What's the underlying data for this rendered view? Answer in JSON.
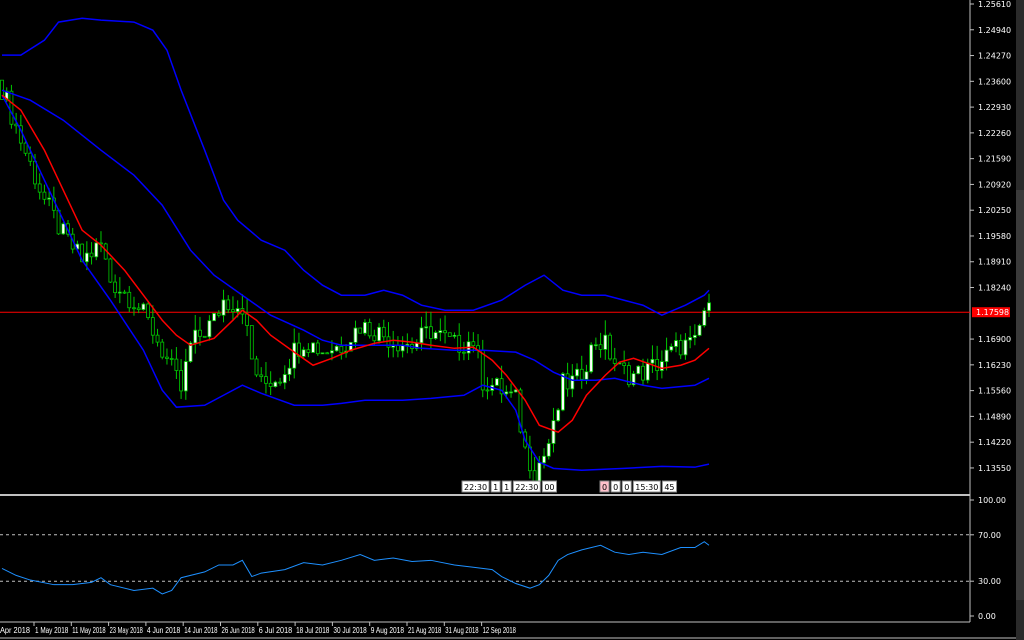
{
  "chart_data": {
    "type": "candlestick",
    "price_axis": {
      "ticks": [
        "1.25610",
        "1.24940",
        "1.24270",
        "1.23600",
        "1.22930",
        "1.22260",
        "1.21590",
        "1.20920",
        "1.20250",
        "1.19580",
        "1.18910",
        "1.18240",
        "1.16900",
        "1.16230",
        "1.15560",
        "1.14890",
        "1.14220",
        "1.13550"
      ],
      "ylim": [
        1.1302,
        1.2571
      ]
    },
    "current_price": "1.17598",
    "current_price_color": "#ff0000",
    "date_axis": {
      "bars": 150,
      "labels": [
        "Apr 2018",
        "1 May 2018",
        "11 May 2018",
        "23 May 2018",
        "4 Jun 2018",
        "14 Jun 2018",
        "26 Jun 2018",
        "6 Jul 2018",
        "18 Jul 2018",
        "30 Jul 2018",
        "9 Aug 2018",
        "21 Aug 2018",
        "31 Aug 2018",
        "12 Sep 2018"
      ]
    },
    "close_path": [
      [
        0,
        1.2343
      ],
      [
        4,
        1.2207
      ],
      [
        9,
        1.2051
      ],
      [
        13,
        1.196
      ],
      [
        17,
        1.1895
      ],
      [
        21,
        1.1934
      ],
      [
        23,
        1.1843
      ],
      [
        28,
        1.1791
      ],
      [
        32,
        1.1713
      ],
      [
        36,
        1.1609
      ],
      [
        38,
        1.1557
      ],
      [
        40,
        1.1674
      ],
      [
        45,
        1.1739
      ],
      [
        47,
        1.1791
      ],
      [
        51,
        1.1778
      ],
      [
        53,
        1.1635
      ],
      [
        55,
        1.157
      ],
      [
        59,
        1.1596
      ],
      [
        62,
        1.1661
      ],
      [
        64,
        1.1687
      ],
      [
        68,
        1.1661
      ],
      [
        72,
        1.1674
      ],
      [
        76,
        1.1726
      ],
      [
        79,
        1.1713
      ],
      [
        83,
        1.1687
      ],
      [
        87,
        1.1674
      ],
      [
        91,
        1.1713
      ],
      [
        96,
        1.1674
      ],
      [
        100,
        1.1687
      ],
      [
        102,
        1.1583
      ],
      [
        106,
        1.1557
      ],
      [
        109,
        1.1531
      ],
      [
        111,
        1.1401
      ],
      [
        113,
        1.1349
      ],
      [
        115,
        1.1388
      ],
      [
        117,
        1.1453
      ],
      [
        119,
        1.157
      ],
      [
        122,
        1.1583
      ],
      [
        126,
        1.1687
      ],
      [
        128,
        1.1674
      ],
      [
        131,
        1.1609
      ],
      [
        134,
        1.1596
      ],
      [
        137,
        1.1609
      ],
      [
        140,
        1.1635
      ],
      [
        144,
        1.1674
      ],
      [
        147,
        1.1674
      ],
      [
        149,
        1.1765
      ],
      [
        150,
        1.176
      ]
    ],
    "series": [
      {
        "color": "#0000ff",
        "points": [
          [
            0,
            1.2428
          ],
          [
            4,
            1.2428
          ],
          [
            9,
            1.2467
          ],
          [
            12,
            1.2514
          ],
          [
            17,
            1.2524
          ],
          [
            21,
            1.2519
          ],
          [
            28,
            1.2514
          ],
          [
            32,
            1.2493
          ],
          [
            35,
            1.2441
          ],
          [
            38,
            1.2337
          ],
          [
            43,
            1.2181
          ],
          [
            47,
            1.2051
          ],
          [
            50,
            1.1999
          ],
          [
            55,
            1.1947
          ],
          [
            60,
            1.1921
          ],
          [
            64,
            1.1869
          ],
          [
            68,
            1.183
          ],
          [
            72,
            1.1804
          ],
          [
            77,
            1.1804
          ],
          [
            81,
            1.1817
          ],
          [
            85,
            1.1804
          ],
          [
            89,
            1.1778
          ],
          [
            94,
            1.1765
          ],
          [
            100,
            1.1765
          ],
          [
            106,
            1.1791
          ],
          [
            111,
            1.183
          ],
          [
            115,
            1.1856
          ],
          [
            119,
            1.1817
          ],
          [
            123,
            1.1804
          ],
          [
            128,
            1.1804
          ],
          [
            132,
            1.1791
          ],
          [
            136,
            1.1778
          ],
          [
            140,
            1.1752
          ],
          [
            145,
            1.1778
          ],
          [
            149,
            1.1804
          ],
          [
            150,
            1.1817
          ]
        ]
      },
      {
        "color": "#0000ff",
        "points": [
          [
            0,
            1.2337
          ],
          [
            6,
            1.2311
          ],
          [
            13,
            1.2259
          ],
          [
            21,
            1.2181
          ],
          [
            28,
            1.2116
          ],
          [
            34,
            1.2038
          ],
          [
            40,
            1.1921
          ],
          [
            45,
            1.1856
          ],
          [
            51,
            1.1804
          ],
          [
            57,
            1.1752
          ],
          [
            64,
            1.1713
          ],
          [
            68,
            1.1687
          ],
          [
            72,
            1.1674
          ],
          [
            77,
            1.1674
          ],
          [
            81,
            1.1674
          ],
          [
            85,
            1.1674
          ],
          [
            89,
            1.1666
          ],
          [
            96,
            1.1661
          ],
          [
            102,
            1.1661
          ],
          [
            109,
            1.1656
          ],
          [
            113,
            1.1635
          ],
          [
            117,
            1.1604
          ],
          [
            121,
            1.1583
          ],
          [
            126,
            1.1583
          ],
          [
            130,
            1.1588
          ],
          [
            136,
            1.157
          ],
          [
            140,
            1.1562
          ],
          [
            147,
            1.157
          ],
          [
            150,
            1.1588
          ]
        ]
      },
      {
        "color": "#0000ff",
        "points": [
          [
            0,
            1.2324
          ],
          [
            4,
            1.2233
          ],
          [
            11,
            1.2051
          ],
          [
            17,
            1.1895
          ],
          [
            23,
            1.1791
          ],
          [
            30,
            1.1661
          ],
          [
            34,
            1.1557
          ],
          [
            37,
            1.1513
          ],
          [
            43,
            1.1518
          ],
          [
            47,
            1.1544
          ],
          [
            51,
            1.157
          ],
          [
            55,
            1.1549
          ],
          [
            62,
            1.1518
          ],
          [
            68,
            1.1518
          ],
          [
            72,
            1.1523
          ],
          [
            77,
            1.1531
          ],
          [
            85,
            1.1531
          ],
          [
            91,
            1.1536
          ],
          [
            98,
            1.1544
          ],
          [
            102,
            1.157
          ],
          [
            106,
            1.1557
          ],
          [
            109,
            1.1505
          ],
          [
            111,
            1.1427
          ],
          [
            114,
            1.137
          ],
          [
            117,
            1.1354
          ],
          [
            123,
            1.1349
          ],
          [
            132,
            1.1354
          ],
          [
            140,
            1.1359
          ],
          [
            147,
            1.1357
          ],
          [
            150,
            1.1365
          ]
        ]
      },
      {
        "color": "#ff0000",
        "points": [
          [
            0,
            1.2324
          ],
          [
            4,
            1.2285
          ],
          [
            9,
            1.2181
          ],
          [
            13,
            1.2077
          ],
          [
            17,
            1.1973
          ],
          [
            21,
            1.1934
          ],
          [
            26,
            1.1869
          ],
          [
            30,
            1.1804
          ],
          [
            34,
            1.1739
          ],
          [
            37,
            1.17
          ],
          [
            40,
            1.1674
          ],
          [
            45,
            1.1692
          ],
          [
            49,
            1.1739
          ],
          [
            51,
            1.1765
          ],
          [
            54,
            1.1739
          ],
          [
            57,
            1.17
          ],
          [
            62,
            1.1656
          ],
          [
            66,
            1.1622
          ],
          [
            70,
            1.164
          ],
          [
            74,
            1.1661
          ],
          [
            79,
            1.1679
          ],
          [
            83,
            1.1687
          ],
          [
            87,
            1.1682
          ],
          [
            91,
            1.1674
          ],
          [
            96,
            1.1666
          ],
          [
            100,
            1.1669
          ],
          [
            104,
            1.1635
          ],
          [
            107,
            1.1596
          ],
          [
            111,
            1.1531
          ],
          [
            114,
            1.1466
          ],
          [
            118,
            1.1448
          ],
          [
            121,
            1.1479
          ],
          [
            124,
            1.1544
          ],
          [
            128,
            1.1596
          ],
          [
            131,
            1.163
          ],
          [
            134,
            1.164
          ],
          [
            137,
            1.1627
          ],
          [
            140,
            1.1614
          ],
          [
            144,
            1.1622
          ],
          [
            147,
            1.1635
          ],
          [
            150,
            1.1666
          ]
        ]
      }
    ],
    "event_labels": [
      "22:30",
      "1",
      "1",
      "22:30",
      "00",
      "0",
      "0",
      "0",
      "15:30",
      "45"
    ],
    "oscillator": {
      "ticks": [
        "100.00",
        "70.00",
        "30.00",
        "0.00"
      ],
      "ylim": [
        0,
        100
      ],
      "levels": [
        70,
        30
      ],
      "color": "#1e90ff",
      "points": [
        [
          0,
          41
        ],
        [
          3,
          35
        ],
        [
          6,
          31
        ],
        [
          11,
          27
        ],
        [
          15,
          27
        ],
        [
          19,
          29
        ],
        [
          21,
          33
        ],
        [
          23,
          27
        ],
        [
          28,
          22
        ],
        [
          32,
          24
        ],
        [
          34,
          19
        ],
        [
          36,
          22
        ],
        [
          38,
          33
        ],
        [
          43,
          38
        ],
        [
          46,
          44
        ],
        [
          49,
          44
        ],
        [
          51,
          48
        ],
        [
          53,
          34
        ],
        [
          55,
          37
        ],
        [
          60,
          40
        ],
        [
          64,
          46
        ],
        [
          68,
          44
        ],
        [
          72,
          48
        ],
        [
          76,
          53
        ],
        [
          79,
          48
        ],
        [
          83,
          50
        ],
        [
          87,
          47
        ],
        [
          91,
          48
        ],
        [
          96,
          44
        ],
        [
          100,
          42
        ],
        [
          104,
          40
        ],
        [
          106,
          34
        ],
        [
          109,
          28
        ],
        [
          112,
          24
        ],
        [
          114,
          27
        ],
        [
          116,
          35
        ],
        [
          118,
          48
        ],
        [
          120,
          53
        ],
        [
          123,
          57
        ],
        [
          127,
          61
        ],
        [
          130,
          55
        ],
        [
          133,
          53
        ],
        [
          136,
          55
        ],
        [
          140,
          53
        ],
        [
          144,
          59
        ],
        [
          147,
          59
        ],
        [
          149,
          64
        ],
        [
          150,
          61
        ]
      ]
    }
  }
}
